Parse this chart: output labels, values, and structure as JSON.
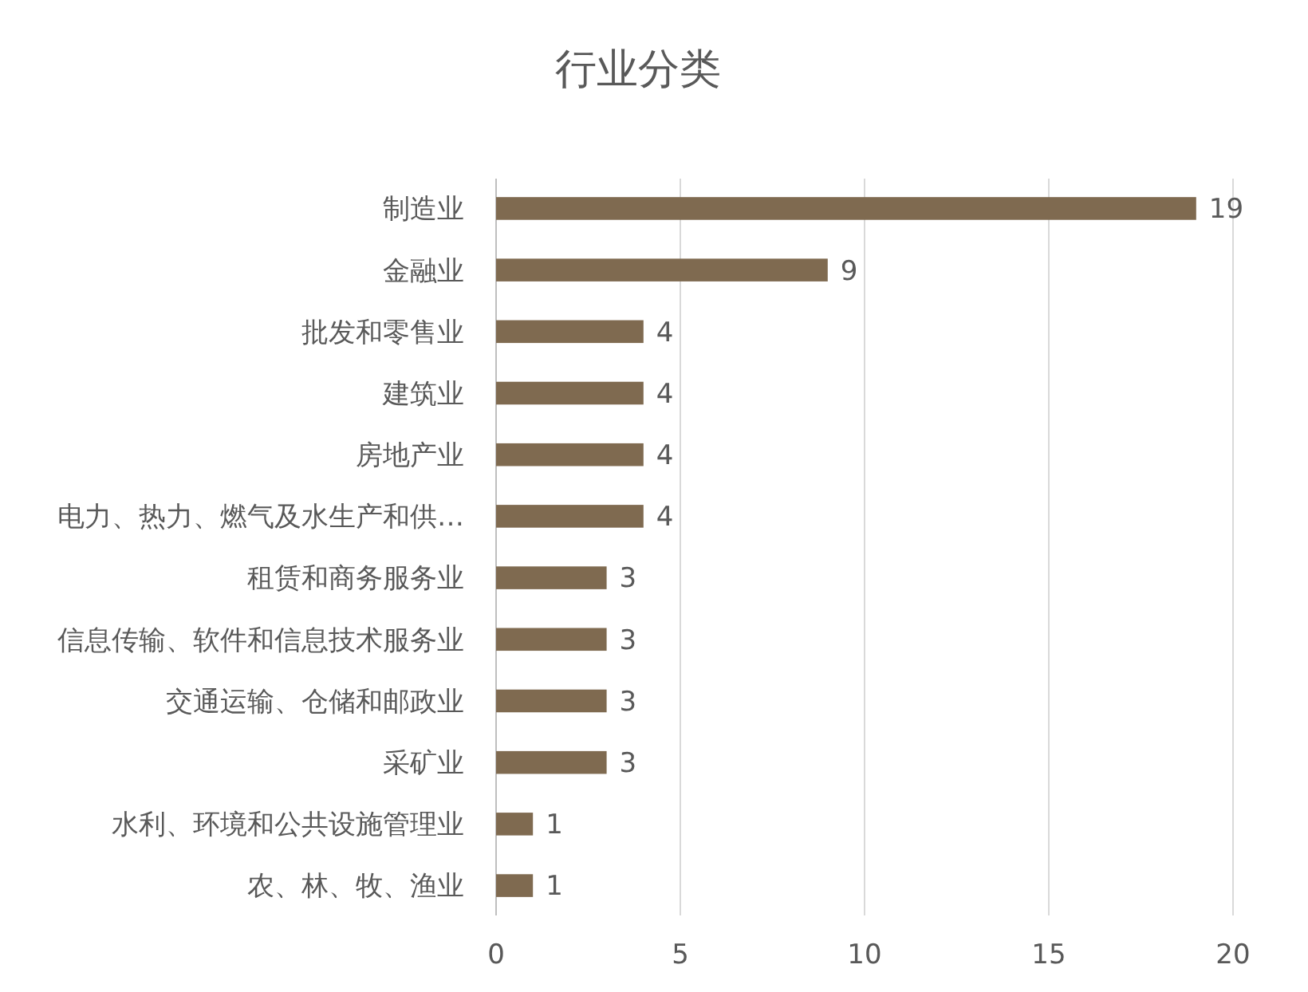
{
  "chart_data": {
    "type": "bar",
    "orientation": "horizontal",
    "title": "行业分类",
    "categories": [
      "制造业",
      "金融业",
      "批发和零售业",
      "建筑业",
      "房地产业",
      "电力、热力、燃气及水生产和供…",
      "租赁和商务服务业",
      "信息传输、软件和信息技术服务业",
      "交通运输、仓储和邮政业",
      "采矿业",
      "水利、环境和公共设施管理业",
      "农、林、牧、渔业"
    ],
    "values": [
      19,
      9,
      4,
      4,
      4,
      4,
      3,
      3,
      3,
      3,
      1,
      1
    ],
    "color": "#7f6a50",
    "xlim": [
      0,
      20
    ],
    "xticks": [
      0,
      5,
      10,
      15,
      20
    ],
    "grid": "x",
    "data_labels": true
  }
}
